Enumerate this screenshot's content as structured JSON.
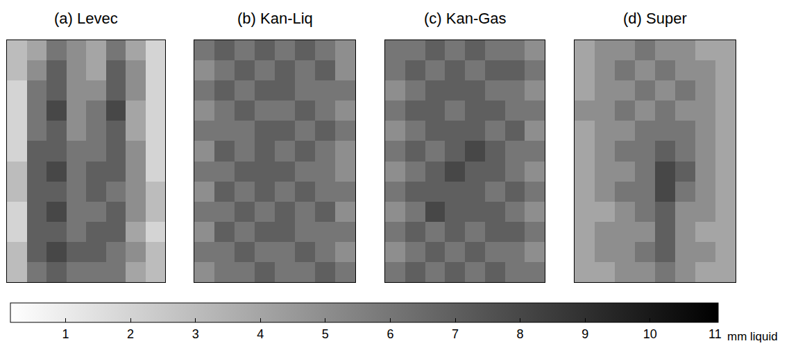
{
  "chart_data": [
    {
      "type": "heatmap",
      "title": "(a) Levec",
      "tick_labels": false,
      "cells": [
        [
          3,
          4,
          6,
          5,
          4,
          6,
          4,
          2
        ],
        [
          3,
          5,
          7,
          5,
          4,
          7,
          5,
          2
        ],
        [
          2,
          6,
          7,
          5,
          5,
          7,
          5,
          2
        ],
        [
          2,
          6,
          8,
          5,
          6,
          8,
          4,
          2
        ],
        [
          2,
          6,
          7,
          5,
          6,
          7,
          4,
          2
        ],
        [
          2,
          7,
          7,
          6,
          6,
          7,
          5,
          2
        ],
        [
          3,
          7,
          8,
          6,
          7,
          7,
          5,
          2
        ],
        [
          3,
          7,
          7,
          6,
          7,
          6,
          5,
          3
        ],
        [
          2,
          7,
          8,
          6,
          6,
          7,
          5,
          3
        ],
        [
          2,
          7,
          7,
          6,
          7,
          7,
          4,
          2
        ],
        [
          3,
          7,
          8,
          7,
          7,
          6,
          5,
          3
        ],
        [
          3,
          6,
          7,
          6,
          6,
          6,
          4,
          3
        ]
      ]
    },
    {
      "type": "heatmap",
      "title": "(b) Kan-Liq",
      "tick_labels": false,
      "cells": [
        [
          6,
          7,
          6,
          7,
          6,
          7,
          6,
          5
        ],
        [
          5,
          6,
          7,
          6,
          7,
          6,
          7,
          5
        ],
        [
          6,
          7,
          6,
          7,
          7,
          6,
          6,
          6
        ],
        [
          5,
          6,
          7,
          6,
          6,
          7,
          6,
          5
        ],
        [
          6,
          6,
          6,
          7,
          7,
          6,
          7,
          6
        ],
        [
          5,
          7,
          6,
          7,
          6,
          7,
          6,
          5
        ],
        [
          6,
          6,
          7,
          7,
          7,
          6,
          6,
          5
        ],
        [
          5,
          7,
          6,
          7,
          6,
          7,
          6,
          6
        ],
        [
          6,
          6,
          7,
          6,
          7,
          6,
          7,
          5
        ],
        [
          5,
          7,
          6,
          7,
          7,
          6,
          6,
          6
        ],
        [
          6,
          6,
          7,
          6,
          6,
          7,
          6,
          5
        ],
        [
          5,
          6,
          6,
          7,
          6,
          6,
          7,
          6
        ]
      ]
    },
    {
      "type": "heatmap",
      "title": "(c) Kan-Gas",
      "tick_labels": false,
      "cells": [
        [
          6,
          6,
          7,
          6,
          7,
          6,
          6,
          5
        ],
        [
          6,
          7,
          6,
          7,
          6,
          7,
          7,
          6
        ],
        [
          5,
          6,
          7,
          7,
          7,
          6,
          6,
          5
        ],
        [
          6,
          7,
          7,
          6,
          7,
          7,
          6,
          6
        ],
        [
          5,
          6,
          7,
          7,
          7,
          6,
          7,
          5
        ],
        [
          6,
          7,
          6,
          7,
          8,
          7,
          6,
          6
        ],
        [
          5,
          6,
          7,
          8,
          7,
          7,
          6,
          5
        ],
        [
          6,
          7,
          7,
          7,
          7,
          6,
          7,
          6
        ],
        [
          5,
          6,
          8,
          7,
          7,
          7,
          6,
          5
        ],
        [
          6,
          7,
          6,
          7,
          6,
          7,
          7,
          6
        ],
        [
          5,
          6,
          7,
          6,
          7,
          6,
          6,
          5
        ],
        [
          6,
          7,
          6,
          7,
          6,
          7,
          6,
          6
        ]
      ]
    },
    {
      "type": "heatmap",
      "title": "(d) Super",
      "tick_labels": false,
      "cells": [
        [
          4,
          5,
          5,
          6,
          5,
          5,
          4,
          4
        ],
        [
          4,
          5,
          6,
          5,
          6,
          5,
          5,
          4
        ],
        [
          4,
          5,
          5,
          6,
          5,
          6,
          5,
          4
        ],
        [
          5,
          5,
          6,
          5,
          6,
          5,
          5,
          4
        ],
        [
          4,
          5,
          5,
          6,
          6,
          6,
          5,
          4
        ],
        [
          4,
          5,
          6,
          6,
          7,
          6,
          5,
          4
        ],
        [
          4,
          5,
          5,
          6,
          8,
          7,
          5,
          4
        ],
        [
          4,
          5,
          6,
          6,
          8,
          6,
          5,
          4
        ],
        [
          4,
          4,
          5,
          6,
          7,
          5,
          5,
          4
        ],
        [
          4,
          5,
          5,
          5,
          7,
          5,
          4,
          4
        ],
        [
          4,
          5,
          5,
          6,
          7,
          5,
          5,
          4
        ],
        [
          4,
          4,
          5,
          5,
          6,
          5,
          4,
          4
        ]
      ]
    }
  ],
  "colorbar": {
    "title": "mm liquid",
    "range": [
      0.15,
      11.05
    ],
    "ticks": [
      1,
      2,
      3,
      4,
      5,
      6,
      7,
      8,
      9,
      10,
      11
    ]
  }
}
